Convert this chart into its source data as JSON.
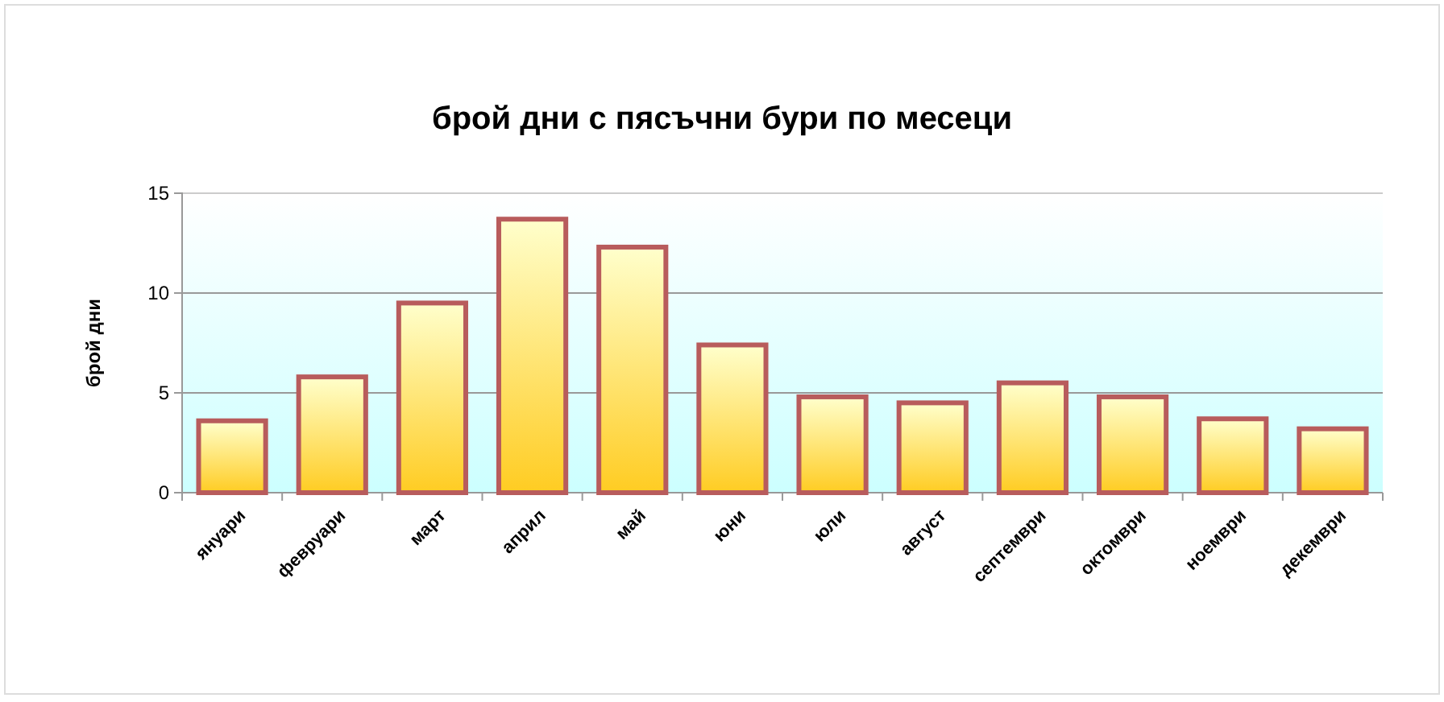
{
  "chart_data": {
    "type": "bar",
    "title": "брой дни с пясъчни бури по месеци",
    "ylabel": "брой дни",
    "categories": [
      "януари",
      "февруари",
      "март",
      "април",
      "май",
      "юни",
      "юли",
      "август",
      "септември",
      "октомври",
      "ноември",
      "декември"
    ],
    "values": [
      3.6,
      5.8,
      9.5,
      13.7,
      12.3,
      7.4,
      4.8,
      4.5,
      5.5,
      4.8,
      3.7,
      3.2
    ],
    "color": "#b85c5c",
    "ylim": [
      0,
      15
    ],
    "yticks": [
      0,
      5,
      10,
      15
    ],
    "grid": "y"
  }
}
